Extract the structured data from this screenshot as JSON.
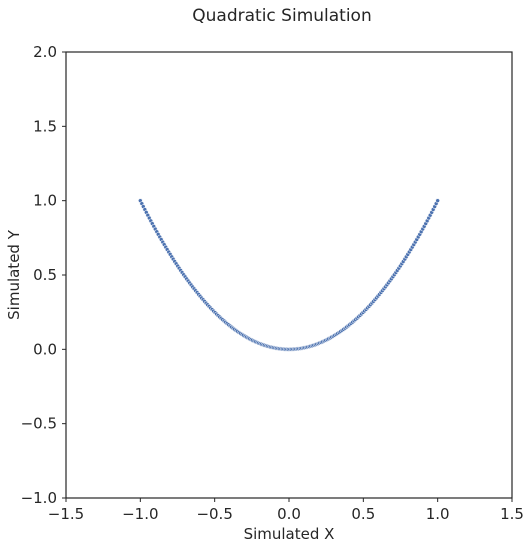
{
  "chart_data": {
    "type": "scatter",
    "title": "Quadratic Simulation",
    "xlabel": "Simulated X",
    "ylabel": "Simulated Y",
    "xlim": [
      -1.5,
      1.5
    ],
    "ylim": [
      -1.0,
      2.0
    ],
    "xticks": [
      -1.5,
      -1.0,
      -0.5,
      0.0,
      0.5,
      1.0,
      1.5
    ],
    "xtick_labels": [
      "−1.5",
      "−1.0",
      "−0.5",
      "0.0",
      "0.5",
      "1.0",
      "1.5"
    ],
    "yticks": [
      -1.0,
      -0.5,
      0.0,
      0.5,
      1.0,
      1.5,
      2.0
    ],
    "ytick_labels": [
      "−1.0",
      "−0.5",
      "0.0",
      "0.5",
      "1.0",
      "1.5",
      "2.0"
    ],
    "grid": false,
    "marker_color": "#4c72b0",
    "marker_edge_color": "#ffffff",
    "series": [
      {
        "x_range": [
          -1.0,
          1.0
        ],
        "n_points": 200,
        "relation": "y = x^2"
      }
    ]
  }
}
